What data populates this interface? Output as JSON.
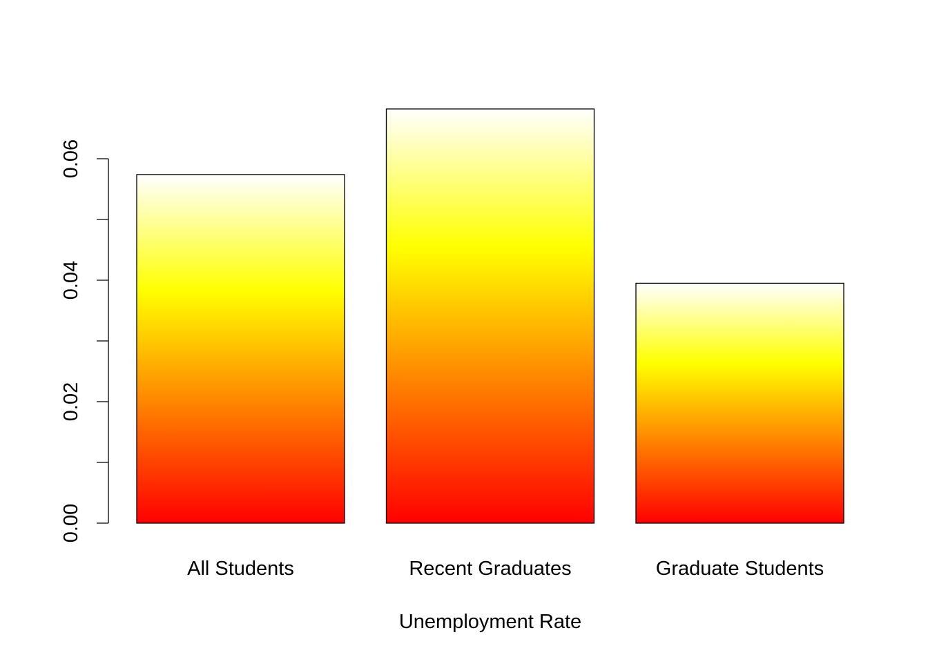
{
  "chart_data": {
    "type": "bar",
    "categories": [
      "All Students",
      "Recent Graduates",
      "Graduate Students"
    ],
    "values": [
      0.0574,
      0.0682,
      0.0395
    ],
    "x_label": "Unemployment Rate",
    "fill_gradient": [
      "#ff0000",
      "#ff8000",
      "#ffff00",
      "#ffffff"
    ],
    "edge_color": "#000000",
    "ylim": [
      0,
      0.0683
    ],
    "yticks": [
      {
        "value": 0,
        "label": "0.00"
      },
      {
        "value": 0.02,
        "label": "0.02"
      },
      {
        "value": 0.04,
        "label": "0.04"
      },
      {
        "value": 0.06,
        "label": "0.06"
      }
    ],
    "minor_yticks": [
      0.01,
      0.03,
      0.05
    ]
  }
}
